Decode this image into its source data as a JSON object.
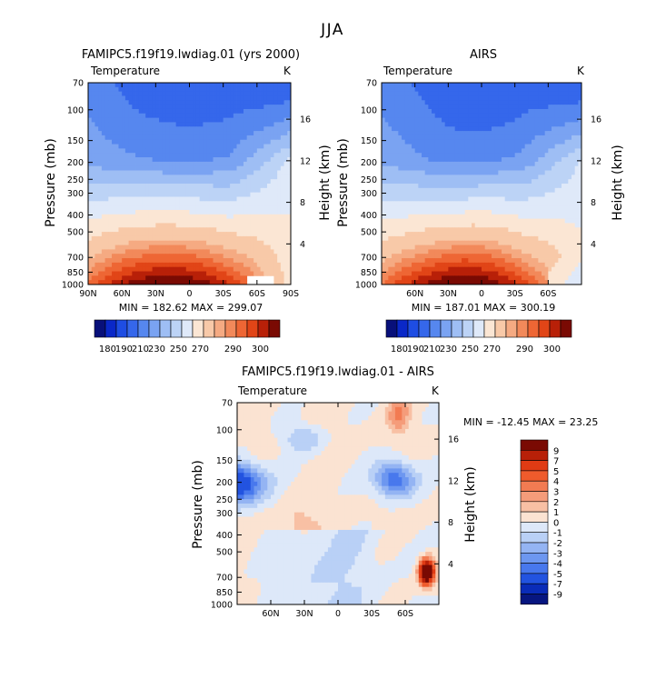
{
  "page_title": "JJA",
  "chart_data": [
    {
      "type": "heatmap",
      "id": "model",
      "title": "FAMIPC5.f19f19.lwdiag.01 (yrs 2000)",
      "subtitle_left": "Temperature",
      "subtitle_right": "K",
      "xlabel": "",
      "ylabel": "Pressure (mb)",
      "ylabel_right": "Height (km)",
      "x_ticks": [
        "90N",
        "60N",
        "30N",
        "0",
        "30S",
        "60S",
        "90S"
      ],
      "y_ticks": [
        "70",
        "100",
        "150",
        "200",
        "250",
        "300",
        "400",
        "500",
        "700",
        "850",
        "1000"
      ],
      "height_ticks": [
        "16",
        "12",
        "8",
        "4"
      ],
      "stats_text": "MIN = 182.62   MAX = 299.07",
      "min": 182.62,
      "max": 299.07,
      "colorbar_labels": [
        "180",
        "190",
        "210",
        "230",
        "250",
        "270",
        "290",
        "300"
      ]
    },
    {
      "type": "heatmap",
      "id": "obs",
      "title": "AIRS",
      "subtitle_left": "Temperature",
      "subtitle_right": "K",
      "xlabel": "",
      "ylabel": "Pressure (mb)",
      "ylabel_right": "Height (km)",
      "x_ticks": [
        "60N",
        "30N",
        "0",
        "30S",
        "60S"
      ],
      "y_ticks": [
        "70",
        "100",
        "150",
        "200",
        "250",
        "300",
        "400",
        "500",
        "700",
        "850",
        "1000"
      ],
      "height_ticks": [
        "16",
        "12",
        "8",
        "4"
      ],
      "stats_text": "MIN = 187.01   MAX = 300.19",
      "min": 187.01,
      "max": 300.19,
      "colorbar_labels": [
        "180",
        "190",
        "210",
        "230",
        "250",
        "270",
        "290",
        "300"
      ]
    },
    {
      "type": "heatmap",
      "id": "diff",
      "title": "FAMIPC5.f19f19.lwdiag.01 - AIRS",
      "subtitle_left": "Temperature",
      "subtitle_right": "K",
      "xlabel": "",
      "ylabel": "Pressure (mb)",
      "ylabel_right": "Height (km)",
      "x_ticks": [
        "60N",
        "30N",
        "0",
        "30S",
        "60S"
      ],
      "y_ticks": [
        "70",
        "100",
        "150",
        "200",
        "250",
        "300",
        "400",
        "500",
        "700",
        "850",
        "1000"
      ],
      "height_ticks": [
        "16",
        "12",
        "8",
        "4"
      ],
      "stats_text": "MIN = -12.45   MAX =  23.25",
      "min": -12.45,
      "max": 23.25,
      "colorbar_labels": [
        "9",
        "7",
        "5",
        "4",
        "3",
        "2",
        "1",
        "0",
        "-1",
        "-2",
        "-3",
        "-4",
        "-5",
        "-7",
        "-9"
      ]
    }
  ],
  "colors": {
    "temp_scale": [
      "#08107a",
      "#0a28c8",
      "#1e4de3",
      "#3567eb",
      "#5687ef",
      "#7aa3f2",
      "#9ebef4",
      "#bcd3f6",
      "#dfe9f9",
      "#fbe6d4",
      "#f8c9a8",
      "#f5aa82",
      "#f2895a",
      "#ee6634",
      "#e14517",
      "#b82008",
      "#7a0a03"
    ],
    "diff_scale": [
      "#7a0a03",
      "#b82008",
      "#e03b14",
      "#ef5b2c",
      "#f27b52",
      "#f59c7a",
      "#f8c0a4",
      "#fbe3d2",
      "#dde8f9",
      "#b9d0f6",
      "#94b4f3",
      "#6d97f0",
      "#4878ed",
      "#2253e0",
      "#0a2cb8",
      "#071680"
    ]
  }
}
